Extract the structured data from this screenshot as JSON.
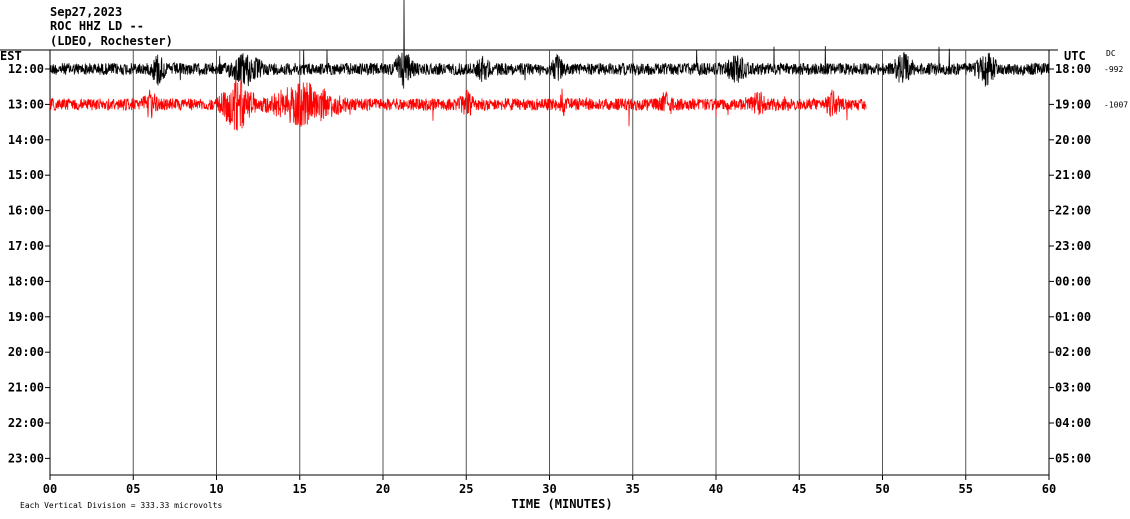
{
  "chart_data": {
    "type": "line",
    "title_lines": [
      "Sep27,2023",
      "ROC HHZ LD --",
      "(LDEO, Rochester)"
    ],
    "left_axis_label": "EST",
    "right_axis_label": "UTC",
    "dc_label": "DC",
    "xlabel": "TIME (MINUTES)",
    "footer_note": "Each Vertical Division =  333.33 microvolts",
    "x_ticks": [
      "00",
      "05",
      "10",
      "15",
      "20",
      "25",
      "30",
      "35",
      "40",
      "45",
      "50",
      "55",
      "60"
    ],
    "xlim": [
      0,
      60
    ],
    "grid_minutes": [
      5,
      10,
      15,
      20,
      25,
      30,
      35,
      40,
      45,
      50,
      55
    ],
    "rows_est": [
      "12:00",
      "13:00",
      "14:00",
      "15:00",
      "16:00",
      "17:00",
      "18:00",
      "19:00",
      "20:00",
      "21:00",
      "22:00",
      "23:00"
    ],
    "rows_utc": [
      "18:00",
      "19:00",
      "20:00",
      "21:00",
      "22:00",
      "23:00",
      "00:00",
      "01:00",
      "02:00",
      "03:00",
      "04:00",
      "05:00"
    ],
    "dc_values": [
      "-992",
      "-1007",
      "",
      "",
      "",
      "",
      "",
      "",
      "",
      "",
      "",
      ""
    ],
    "series": [
      {
        "row": 0,
        "color": "#000000",
        "end_minute": 60,
        "bursts": [
          [
            6,
            7,
            2.2
          ],
          [
            10.5,
            13,
            2.0
          ],
          [
            20.5,
            22,
            2.4
          ],
          [
            25.5,
            26.5,
            1.6
          ],
          [
            30,
            31,
            1.5
          ],
          [
            40.5,
            42,
            1.8
          ],
          [
            50.5,
            52,
            2.0
          ],
          [
            55.5,
            57,
            2.2
          ]
        ]
      },
      {
        "row": 1,
        "color": "#ff0000",
        "end_minute": 49,
        "bursts": [
          [
            5.5,
            6.5,
            2.0
          ],
          [
            10,
            12.5,
            4.0
          ],
          [
            12.5,
            18,
            3.0
          ],
          [
            24.5,
            25.5,
            1.6
          ],
          [
            30.5,
            31,
            1.8
          ],
          [
            36.5,
            37.5,
            1.5
          ],
          [
            42,
            43,
            1.7
          ],
          [
            46.5,
            47.5,
            1.6
          ]
        ]
      }
    ],
    "colors": {
      "trace_1": "#000000",
      "trace_2": "#ff0000",
      "grid": "#555555"
    }
  }
}
